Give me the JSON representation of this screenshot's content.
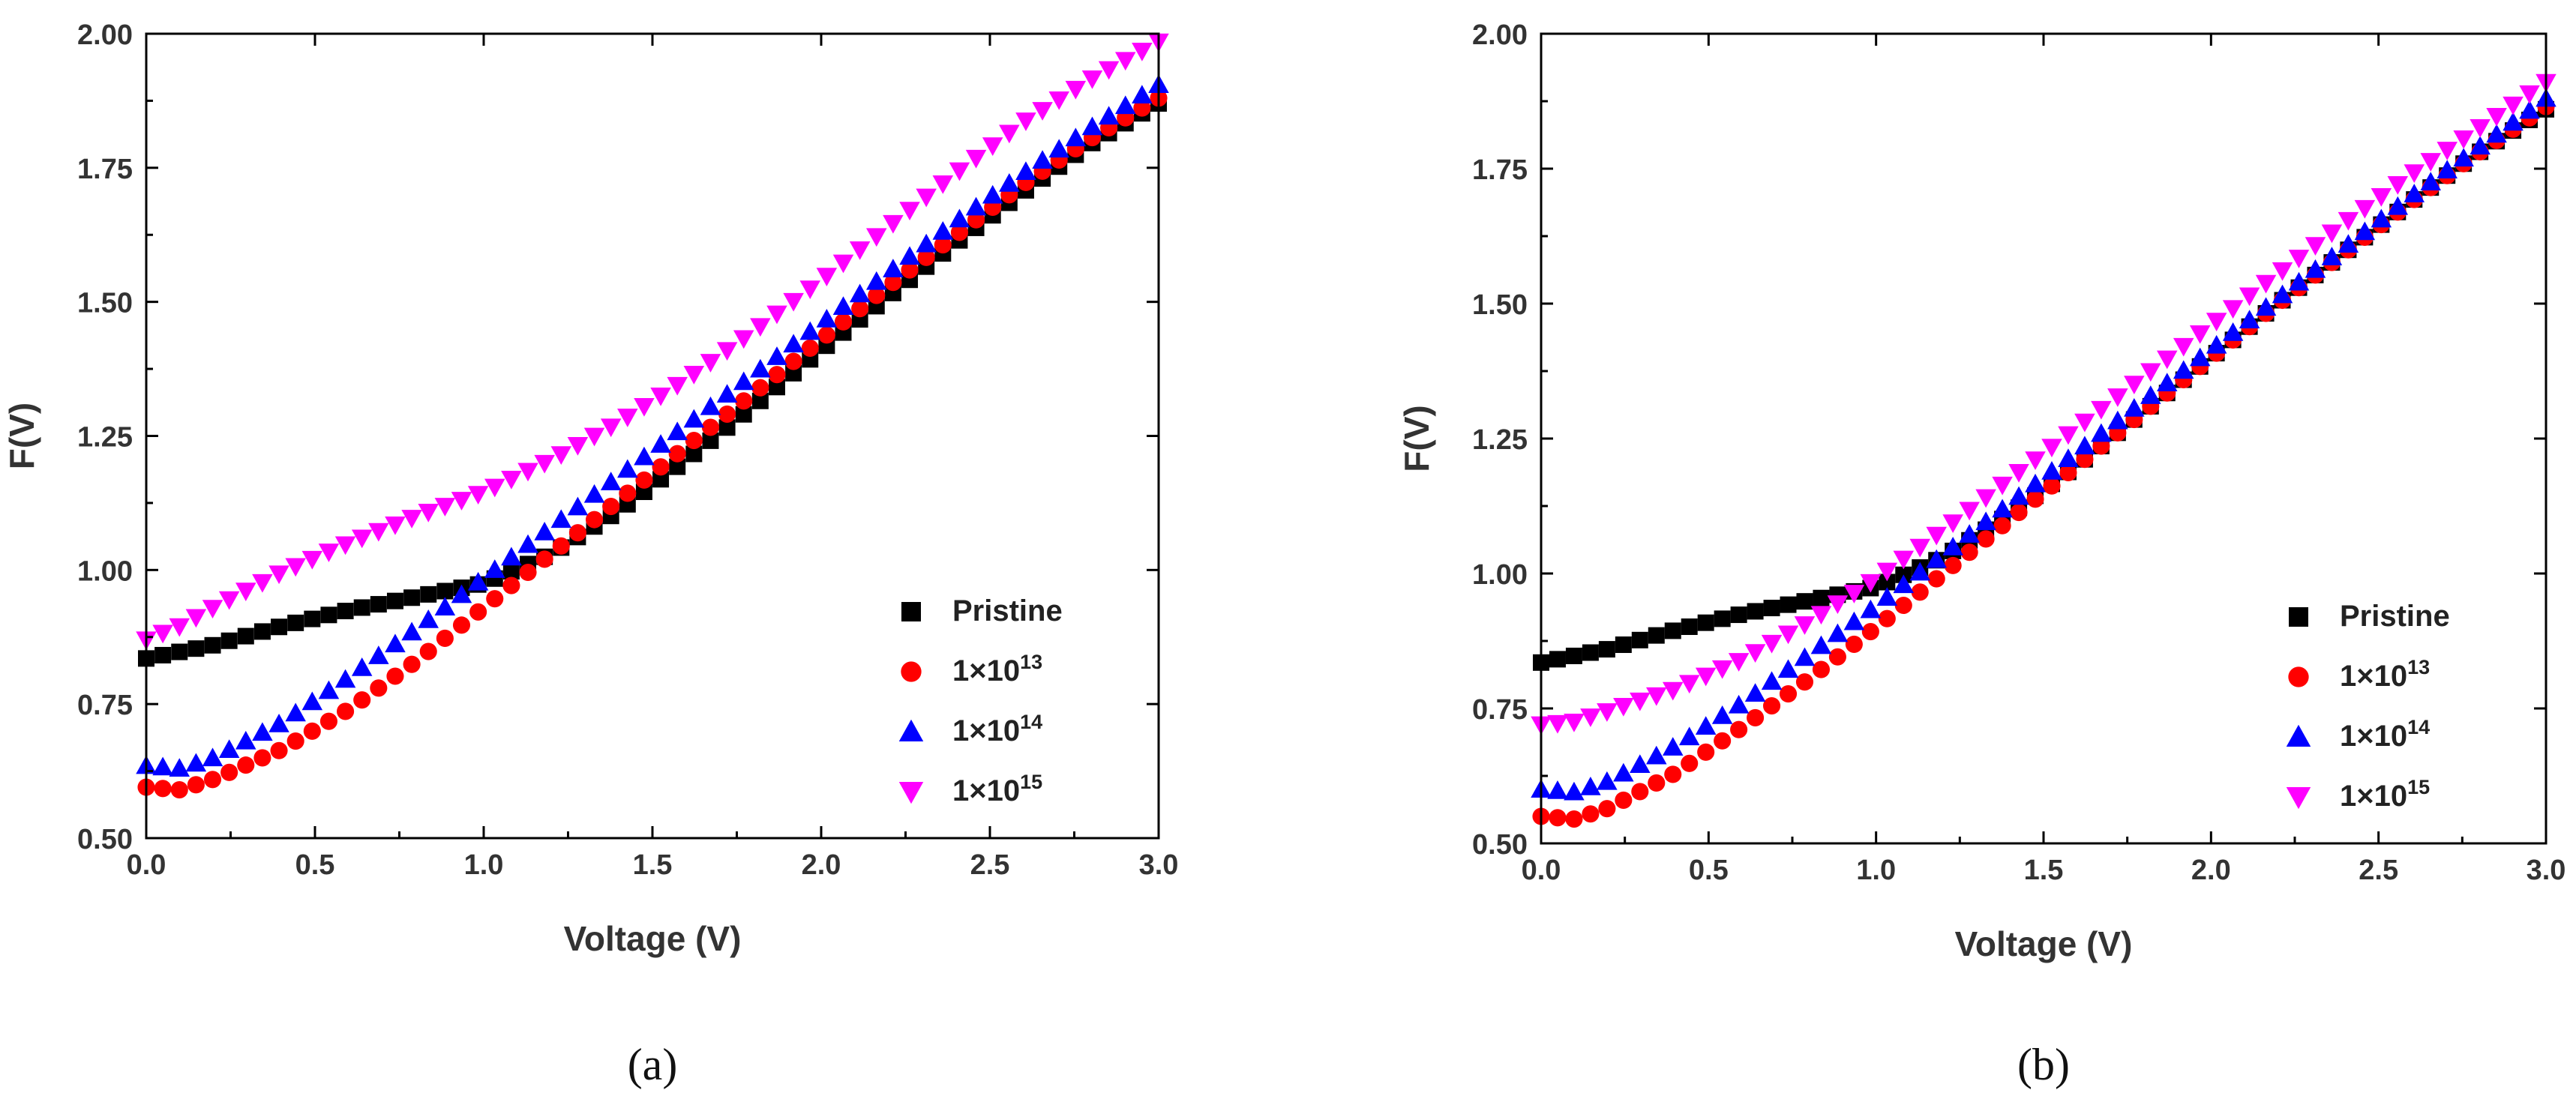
{
  "chart_data": [
    {
      "type": "scatter",
      "panel": "(a)",
      "xlabel": "Voltage (V)",
      "ylabel": "F(V)",
      "xlim": [
        0.0,
        3.0
      ],
      "ylim": [
        0.5,
        2.0
      ],
      "xticks": [
        "0.0",
        "0.5",
        "1.0",
        "1.5",
        "2.0",
        "2.5",
        "3.0"
      ],
      "yticks": [
        "0.50",
        "0.75",
        "1.00",
        "1.25",
        "1.50",
        "1.75",
        "2.00"
      ],
      "legend_position": "bottom-right",
      "series": [
        {
          "name": "Pristine",
          "base": "",
          "exp": "",
          "color": "#000000",
          "marker": "square",
          "points": [
            [
              0.0,
              0.835
            ],
            [
              0.2,
              0.86
            ],
            [
              0.4,
              0.895
            ],
            [
              0.6,
              0.925
            ],
            [
              0.8,
              0.95
            ],
            [
              1.0,
              0.975
            ],
            [
              1.2,
              1.03
            ],
            [
              1.4,
              1.11
            ],
            [
              1.6,
              1.205
            ],
            [
              1.8,
              1.305
            ],
            [
              2.0,
              1.41
            ],
            [
              2.2,
              1.51
            ],
            [
              2.4,
              1.61
            ],
            [
              2.6,
              1.705
            ],
            [
              2.8,
              1.795
            ],
            [
              3.0,
              1.87
            ]
          ]
        },
        {
          "name": "1×1013",
          "base": "1×10",
          "exp": "13",
          "color": "#ff0000",
          "marker": "circle",
          "points": [
            [
              0.0,
              0.595
            ],
            [
              0.1,
              0.59
            ],
            [
              0.2,
              0.61
            ],
            [
              0.4,
              0.665
            ],
            [
              0.6,
              0.74
            ],
            [
              0.8,
              0.83
            ],
            [
              1.0,
              0.93
            ],
            [
              1.2,
              1.03
            ],
            [
              1.4,
              1.13
            ],
            [
              1.6,
              1.23
            ],
            [
              1.8,
              1.33
            ],
            [
              2.0,
              1.43
            ],
            [
              2.2,
              1.53
            ],
            [
              2.4,
              1.625
            ],
            [
              2.6,
              1.72
            ],
            [
              2.8,
              1.805
            ],
            [
              3.0,
              1.88
            ]
          ]
        },
        {
          "name": "1×1014",
          "base": "1×10",
          "exp": "14",
          "color": "#0000ff",
          "marker": "triangle-up",
          "points": [
            [
              0.0,
              0.635
            ],
            [
              0.1,
              0.63
            ],
            [
              0.2,
              0.65
            ],
            [
              0.4,
              0.715
            ],
            [
              0.6,
              0.8
            ],
            [
              0.8,
              0.89
            ],
            [
              1.0,
              0.985
            ],
            [
              1.2,
              1.08
            ],
            [
              1.4,
              1.175
            ],
            [
              1.6,
              1.27
            ],
            [
              1.8,
              1.365
            ],
            [
              2.0,
              1.46
            ],
            [
              2.2,
              1.555
            ],
            [
              2.4,
              1.65
            ],
            [
              2.6,
              1.74
            ],
            [
              2.8,
              1.825
            ],
            [
              3.0,
              1.905
            ]
          ]
        },
        {
          "name": "1×1015",
          "base": "1×10",
          "exp": "15",
          "color": "#ff00ff",
          "marker": "triangle-down",
          "points": [
            [
              0.0,
              0.87
            ],
            [
              0.1,
              0.895
            ],
            [
              0.2,
              0.93
            ],
            [
              0.4,
              0.995
            ],
            [
              0.6,
              1.05
            ],
            [
              0.8,
              1.1
            ],
            [
              1.0,
              1.145
            ],
            [
              1.2,
              1.205
            ],
            [
              1.4,
              1.275
            ],
            [
              1.6,
              1.355
            ],
            [
              1.8,
              1.445
            ],
            [
              2.0,
              1.54
            ],
            [
              2.2,
              1.64
            ],
            [
              2.4,
              1.74
            ],
            [
              2.6,
              1.835
            ],
            [
              2.8,
              1.915
            ],
            [
              3.0,
              1.985
            ]
          ]
        }
      ]
    },
    {
      "type": "scatter",
      "panel": "(b)",
      "xlabel": "Voltage (V)",
      "ylabel": "F(V)",
      "xlim": [
        0.0,
        3.0
      ],
      "ylim": [
        0.5,
        2.0
      ],
      "xticks": [
        "0.0",
        "0.5",
        "1.0",
        "1.5",
        "2.0",
        "2.5",
        "3.0"
      ],
      "yticks": [
        "0.50",
        "0.75",
        "1.00",
        "1.25",
        "1.50",
        "1.75",
        "2.00"
      ],
      "legend_position": "bottom-right",
      "series": [
        {
          "name": "Pristine",
          "base": "",
          "exp": "",
          "color": "#000000",
          "marker": "square",
          "points": [
            [
              0.0,
              0.835
            ],
            [
              0.2,
              0.86
            ],
            [
              0.4,
              0.895
            ],
            [
              0.6,
              0.925
            ],
            [
              0.8,
              0.95
            ],
            [
              1.0,
              0.975
            ],
            [
              1.2,
              1.03
            ],
            [
              1.4,
              1.11
            ],
            [
              1.6,
              1.2
            ],
            [
              1.8,
              1.3
            ],
            [
              2.0,
              1.4
            ],
            [
              2.2,
              1.5
            ],
            [
              2.4,
              1.595
            ],
            [
              2.6,
              1.69
            ],
            [
              2.8,
              1.78
            ],
            [
              3.0,
              1.86
            ]
          ]
        },
        {
          "name": "1×1013",
          "base": "1×10",
          "exp": "13",
          "color": "#ff0000",
          "marker": "circle",
          "points": [
            [
              0.0,
              0.55
            ],
            [
              0.1,
              0.545
            ],
            [
              0.2,
              0.565
            ],
            [
              0.4,
              0.63
            ],
            [
              0.6,
              0.715
            ],
            [
              0.8,
              0.805
            ],
            [
              1.0,
              0.9
            ],
            [
              1.2,
              1.0
            ],
            [
              1.4,
              1.1
            ],
            [
              1.6,
              1.2
            ],
            [
              1.8,
              1.3
            ],
            [
              2.0,
              1.4
            ],
            [
              2.2,
              1.5
            ],
            [
              2.4,
              1.595
            ],
            [
              2.6,
              1.69
            ],
            [
              2.8,
              1.78
            ],
            [
              3.0,
              1.865
            ]
          ]
        },
        {
          "name": "1×1014",
          "base": "1×10",
          "exp": "14",
          "color": "#0000ff",
          "marker": "triangle-up",
          "points": [
            [
              0.0,
              0.6
            ],
            [
              0.1,
              0.595
            ],
            [
              0.2,
              0.615
            ],
            [
              0.4,
              0.68
            ],
            [
              0.6,
              0.76
            ],
            [
              0.8,
              0.85
            ],
            [
              1.0,
              0.94
            ],
            [
              1.2,
              1.035
            ],
            [
              1.4,
              1.13
            ],
            [
              1.6,
              1.225
            ],
            [
              1.8,
              1.32
            ],
            [
              2.0,
              1.415
            ],
            [
              2.2,
              1.51
            ],
            [
              2.4,
              1.605
            ],
            [
              2.6,
              1.7
            ],
            [
              2.8,
              1.79
            ],
            [
              3.0,
              1.88
            ]
          ]
        },
        {
          "name": "1×1015",
          "base": "1×10",
          "exp": "15",
          "color": "#ff00ff",
          "marker": "triangle-down",
          "points": [
            [
              0.0,
              0.72
            ],
            [
              0.1,
              0.725
            ],
            [
              0.2,
              0.745
            ],
            [
              0.4,
              0.785
            ],
            [
              0.6,
              0.84
            ],
            [
              0.8,
              0.91
            ],
            [
              1.0,
              0.99
            ],
            [
              1.2,
              1.08
            ],
            [
              1.4,
              1.175
            ],
            [
              1.6,
              1.27
            ],
            [
              1.8,
              1.365
            ],
            [
              2.0,
              1.46
            ],
            [
              2.2,
              1.555
            ],
            [
              2.4,
              1.65
            ],
            [
              2.6,
              1.74
            ],
            [
              2.8,
              1.825
            ],
            [
              3.0,
              1.91
            ]
          ]
        }
      ]
    }
  ]
}
